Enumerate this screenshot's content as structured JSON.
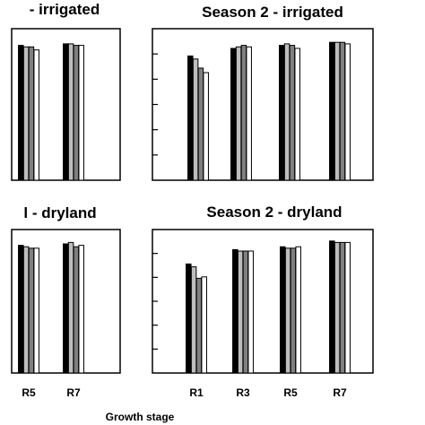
{
  "chart_data": [
    {
      "type": "bar",
      "title": "- irrigated",
      "categories": [
        "R5",
        "R7"
      ],
      "tick_labels_shown": false,
      "ylim": [
        0,
        100
      ],
      "series": [
        {
          "values": [
            89,
            90
          ],
          "color": "#000000"
        },
        {
          "values": [
            88,
            90
          ],
          "color": "#bdbdbd"
        },
        {
          "values": [
            88,
            89
          ],
          "color": "#808080"
        },
        {
          "values": [
            86,
            89
          ],
          "color": "#ffffff"
        }
      ]
    },
    {
      "type": "bar",
      "title": "Season 2 -  irrigated",
      "categories": [
        "R1",
        "R3",
        "R5",
        "R7"
      ],
      "tick_labels_shown": false,
      "ylim": [
        0,
        100
      ],
      "series": [
        {
          "values": [
            82,
            87,
            89,
            91
          ],
          "color": "#000000"
        },
        {
          "values": [
            80,
            88,
            90,
            91
          ],
          "color": "#bdbdbd"
        },
        {
          "values": [
            74,
            89,
            89,
            91
          ],
          "color": "#808080"
        },
        {
          "values": [
            71,
            88,
            87,
            90
          ],
          "color": "#ffffff"
        }
      ]
    },
    {
      "type": "bar",
      "title": "l - dryland",
      "categories": [
        "R5",
        "R7"
      ],
      "tick_labels_shown": true,
      "ylim": [
        0,
        100
      ],
      "series": [
        {
          "values": [
            89,
            90
          ],
          "color": "#000000"
        },
        {
          "values": [
            88,
            91
          ],
          "color": "#bdbdbd"
        },
        {
          "values": [
            87,
            88
          ],
          "color": "#808080"
        },
        {
          "values": [
            87,
            89
          ],
          "color": "#ffffff"
        }
      ]
    },
    {
      "type": "bar",
      "title": "Season 2 - dryland",
      "categories": [
        "R1",
        "R3",
        "R5",
        "R7"
      ],
      "tick_labels_shown": true,
      "ylim": [
        0,
        100
      ],
      "series": [
        {
          "values": [
            76,
            86,
            88,
            92
          ],
          "color": "#000000"
        },
        {
          "values": [
            74,
            85,
            87,
            91
          ],
          "color": "#bdbdbd"
        },
        {
          "values": [
            66,
            85,
            87,
            91
          ],
          "color": "#808080"
        },
        {
          "values": [
            67,
            85,
            88,
            91
          ],
          "color": "#ffffff"
        }
      ]
    }
  ],
  "xlabel": "Growth stage"
}
